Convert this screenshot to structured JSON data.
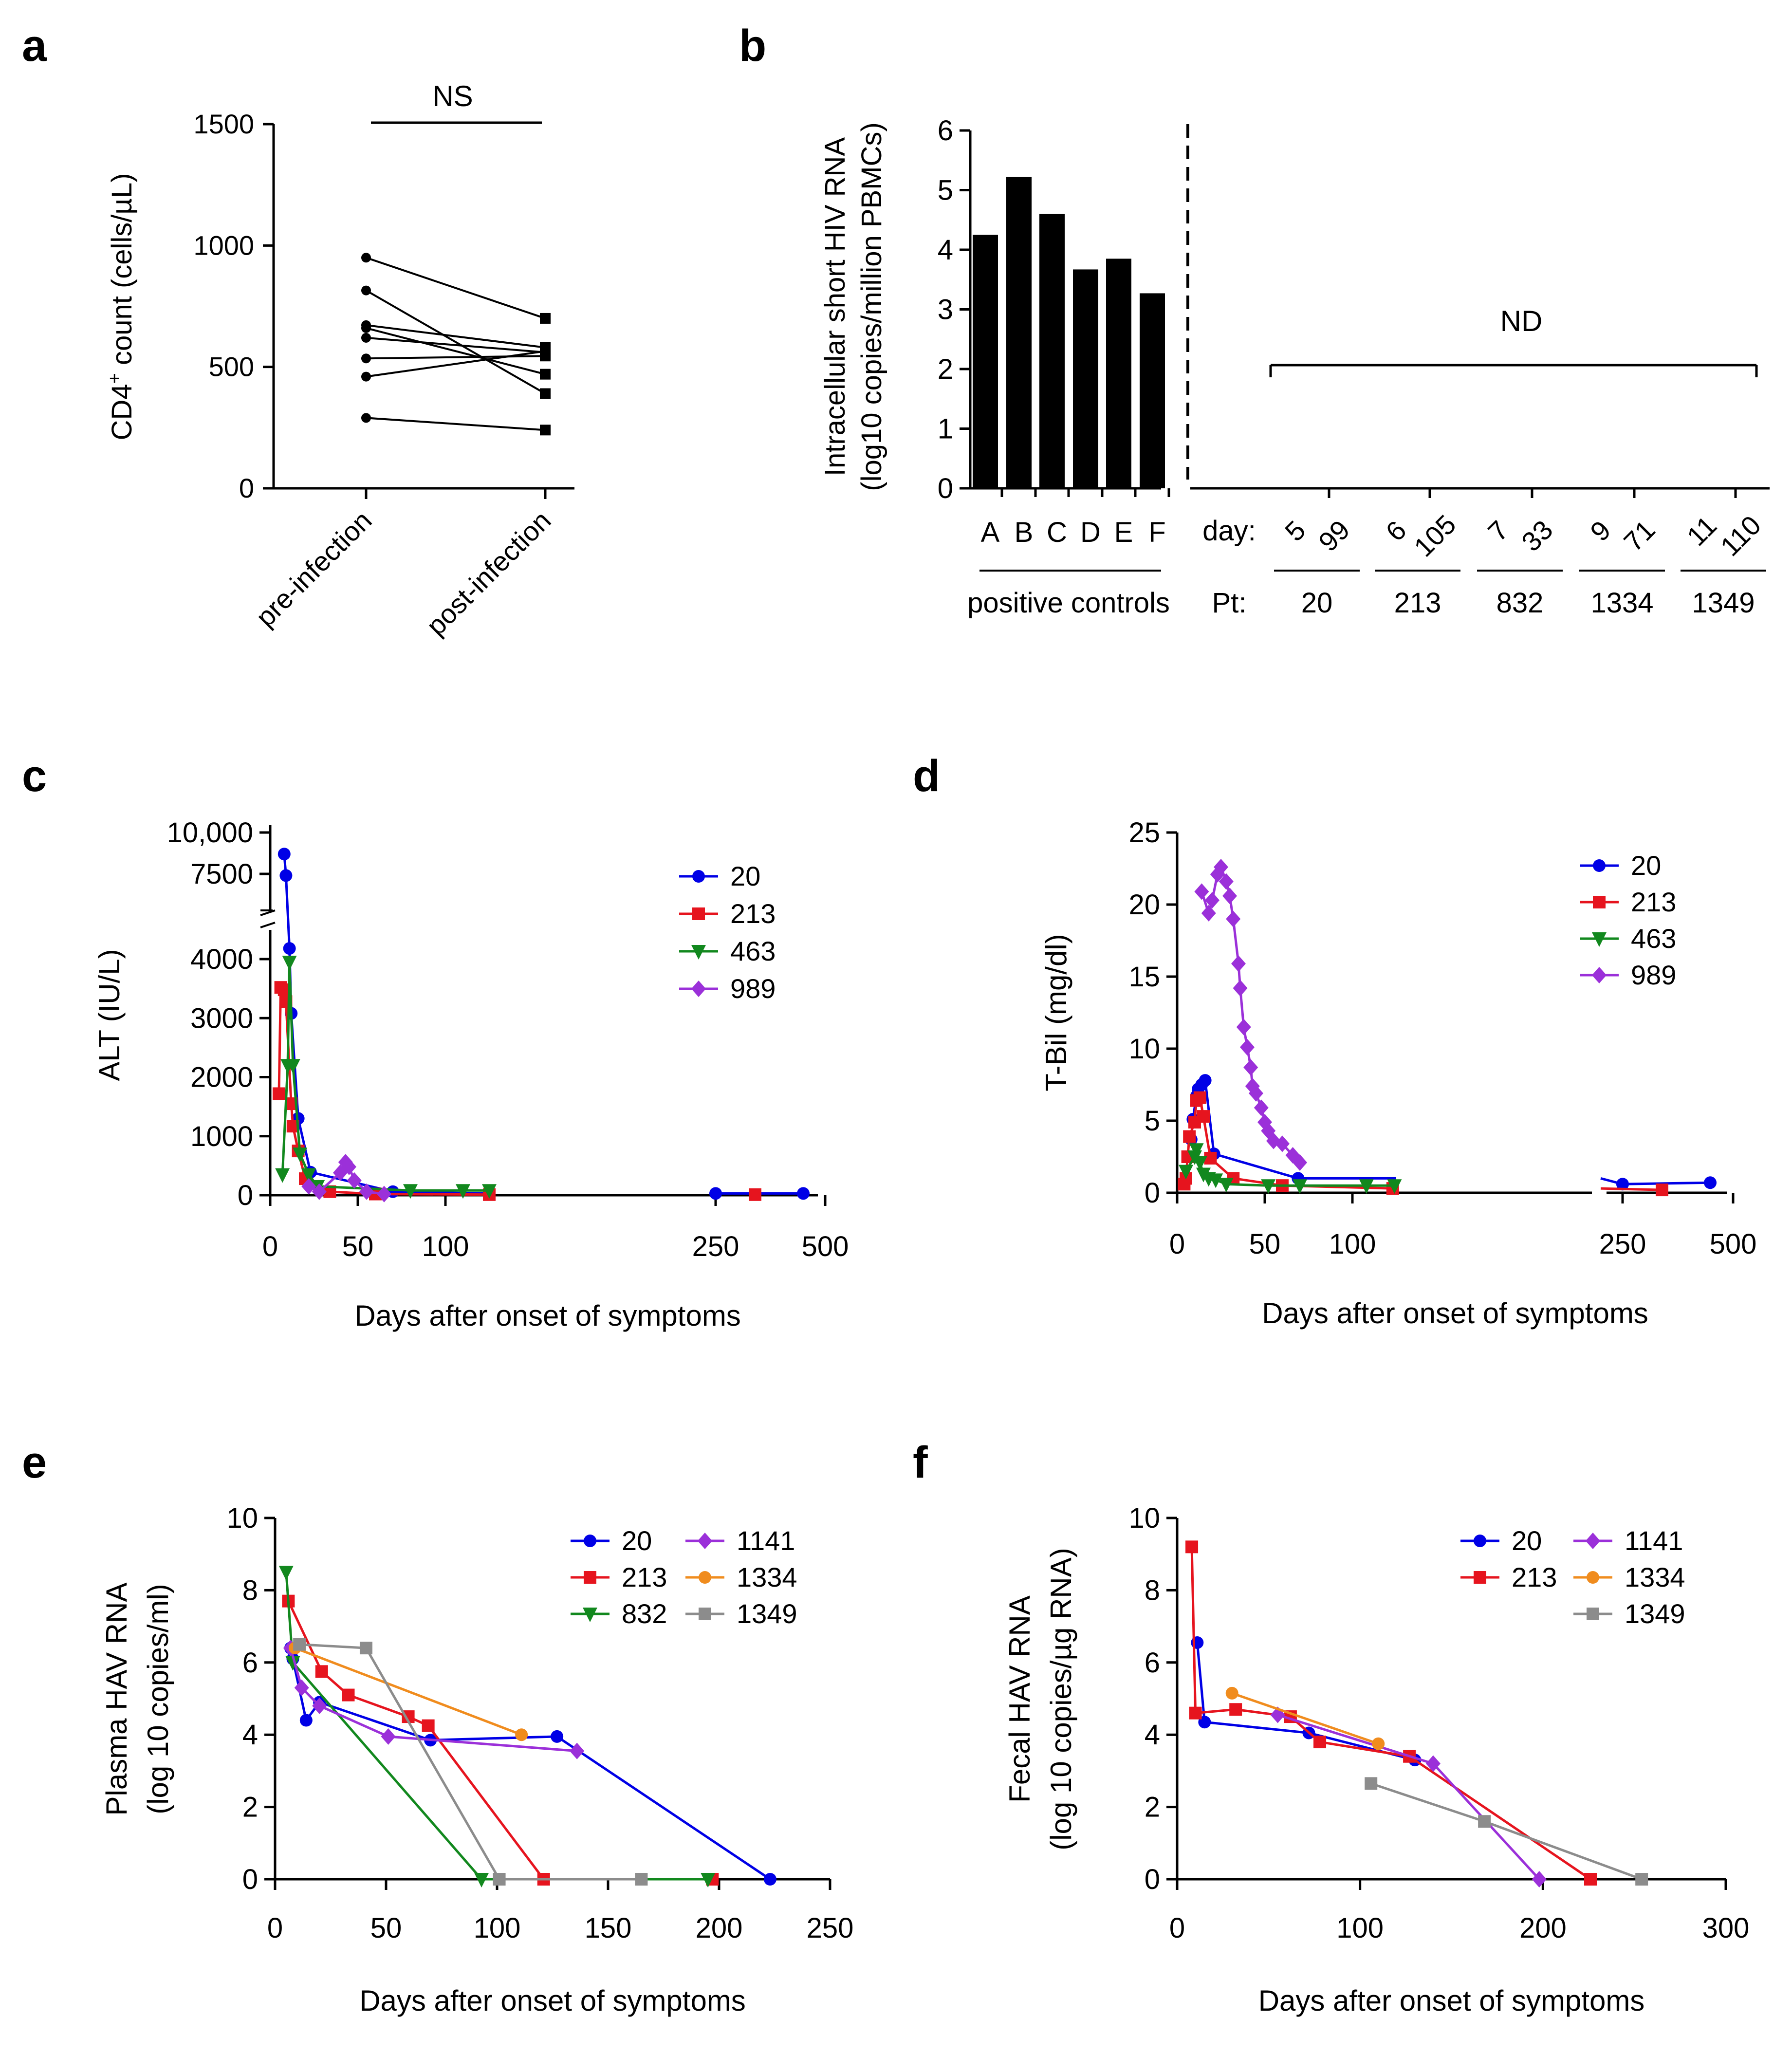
{
  "colors": {
    "s20": "#0000e6",
    "s213": "#e6141e",
    "s463": "#12881e",
    "s832": "#12881e",
    "s989": "#9b30d9",
    "s1141": "#9b30d9",
    "s1334": "#f08c1e",
    "s1349": "#8c8c8c",
    "ink": "#000000"
  },
  "panel_labels": {
    "a": "a",
    "b": "b",
    "c": "c",
    "d": "d",
    "e": "e",
    "f": "f"
  },
  "chart_data": [
    {
      "id": "a",
      "type": "line",
      "title": "",
      "significance": "NS",
      "ylabel_pre": "CD4",
      "ylabel_sup": "+",
      "ylabel_post": " count (cells/µL)",
      "ylim": [
        0,
        1500
      ],
      "yticks": [
        0,
        500,
        1000,
        1500
      ],
      "categories": [
        "pre-infection",
        "post-infection"
      ],
      "pairs": [
        [
          950,
          700
        ],
        [
          815,
          390
        ],
        [
          672,
          580
        ],
        [
          660,
          470
        ],
        [
          620,
          560
        ],
        [
          535,
          545
        ],
        [
          460,
          565
        ],
        [
          290,
          240
        ]
      ]
    },
    {
      "id": "b",
      "type": "bar",
      "ylabel_line1": "Intracellular short HIV RNA",
      "ylabel_line2": "(log10 copies/million PBMCs)",
      "ylim": [
        0,
        6
      ],
      "yticks": [
        0,
        1,
        2,
        3,
        4,
        5,
        6
      ],
      "categories": [
        "A",
        "B",
        "C",
        "D",
        "E",
        "F"
      ],
      "values": [
        4.25,
        5.22,
        4.6,
        3.67,
        3.85,
        3.27
      ],
      "group_label": "positive controls",
      "nd_label": "ND",
      "day_label": "day:",
      "pt_label": "Pt:",
      "patients": [
        {
          "pt": "20",
          "days": [
            "5",
            "99"
          ]
        },
        {
          "pt": "213",
          "days": [
            "6",
            "105"
          ]
        },
        {
          "pt": "832",
          "days": [
            "7",
            "33"
          ]
        },
        {
          "pt": "1334",
          "days": [
            "9",
            "71"
          ]
        },
        {
          "pt": "1349",
          "days": [
            "11",
            "110"
          ]
        }
      ]
    },
    {
      "id": "c",
      "type": "line",
      "ylabel": "ALT (IU/L)",
      "xlabel": "Days after onset of symptoms",
      "xticks": [
        "0",
        "50",
        "100",
        "250",
        "500"
      ],
      "ylower_ticks": [
        "0",
        "1000",
        "2000",
        "3000",
        "4000"
      ],
      "yupper_ticks": [
        "7500",
        "10,000"
      ],
      "legend": [
        "20",
        "213",
        "463",
        "989"
      ],
      "series": [
        {
          "name": "20",
          "color_key": "s20",
          "marker": "circle",
          "segments": [
            [
              [
                8,
                8700
              ],
              [
                9,
                7400
              ],
              [
                11,
                4180
              ],
              [
                12,
                3080
              ],
              [
                16,
                1300
              ],
              [
                23,
                390
              ],
              [
                70,
                60
              ],
              [
                125,
                30
              ]
            ],
            [
              [
                250,
                30
              ],
              [
                450,
                30
              ]
            ]
          ]
        },
        {
          "name": "213",
          "color_key": "s213",
          "marker": "square",
          "segments": [
            [
              [
                5,
                1720
              ],
              [
                6,
                3520
              ],
              [
                8,
                3480
              ],
              [
                9,
                3280
              ],
              [
                12,
                1550
              ],
              [
                13,
                1170
              ],
              [
                16,
                750
              ],
              [
                20,
                280
              ],
              [
                34,
                60
              ],
              [
                60,
                20
              ],
              [
                125,
                10
              ]
            ],
            [
              [
                340,
                10
              ]
            ]
          ]
        },
        {
          "name": "463",
          "color_key": "s463",
          "marker": "tri",
          "segments": [
            [
              [
                7,
                350
              ],
              [
                10,
                2200
              ],
              [
                11,
                3950
              ],
              [
                13,
                2200
              ],
              [
                17,
                700
              ],
              [
                22,
                350
              ],
              [
                27,
                150
              ],
              [
                80,
                80
              ],
              [
                110,
                80
              ],
              [
                125,
                80
              ]
            ]
          ]
        },
        {
          "name": "989",
          "color_key": "s989",
          "marker": "diamond",
          "segments": [
            [
              [
                22,
                150
              ],
              [
                28,
                60
              ],
              [
                40,
                380
              ],
              [
                43,
                560
              ],
              [
                45,
                480
              ],
              [
                48,
                250
              ],
              [
                55,
                60
              ],
              [
                65,
                20
              ]
            ]
          ]
        }
      ]
    },
    {
      "id": "d",
      "type": "line",
      "ylabel": "T-Bil (mg/dl)",
      "xlabel": "Days after onset of symptoms",
      "xticks": [
        "0",
        "50",
        "100",
        "250",
        "500"
      ],
      "yticks": [
        "0",
        "5",
        "10",
        "15",
        "20",
        "25"
      ],
      "legend": [
        "20",
        "213",
        "463",
        "989"
      ],
      "series": [
        {
          "name": "20",
          "color_key": "s20",
          "marker": "circle",
          "segments": [
            [
              [
                8,
                3.7
              ],
              [
                9,
                5.1
              ],
              [
                11,
                6.7
              ],
              [
                12,
                7.2
              ],
              [
                14,
                7.5
              ],
              [
                16,
                7.8
              ],
              [
                21,
                2.7
              ],
              [
                69,
                1.0
              ],
              [
                125,
                1.0
              ]
            ],
            [
              [
                200,
                1.0
              ],
              [
                250,
                0.6
              ],
              [
                450,
                0.7
              ]
            ]
          ]
        },
        {
          "name": "213",
          "color_key": "s213",
          "marker": "square",
          "segments": [
            [
              [
                4,
                0.6
              ],
              [
                5,
                1.0
              ],
              [
                6,
                2.5
              ],
              [
                7,
                3.9
              ],
              [
                10,
                4.9
              ],
              [
                11,
                6.4
              ],
              [
                13,
                6.6
              ],
              [
                15,
                5.3
              ],
              [
                19,
                2.4
              ],
              [
                32,
                1.0
              ],
              [
                60,
                0.5
              ],
              [
                123,
                0.3
              ]
            ],
            [
              [
                200,
                0.3
              ],
              [
                340,
                0.2
              ]
            ]
          ]
        },
        {
          "name": "463",
          "color_key": "s463",
          "marker": "tri",
          "segments": [
            [
              [
                5,
                1.5
              ],
              [
                10,
                2.5
              ],
              [
                11,
                3.0
              ],
              [
                13,
                2.1
              ],
              [
                15,
                1.3
              ],
              [
                18,
                1.0
              ],
              [
                22,
                0.9
              ],
              [
                28,
                0.6
              ],
              [
                52,
                0.5
              ],
              [
                70,
                0.5
              ],
              [
                108,
                0.5
              ],
              [
                124,
                0.5
              ]
            ]
          ]
        },
        {
          "name": "989",
          "color_key": "s989",
          "marker": "diamond",
          "segments": [
            [
              [
                14,
                20.9
              ],
              [
                18,
                19.4
              ],
              [
                20,
                20.3
              ],
              [
                23,
                22.1
              ],
              [
                25,
                22.6
              ],
              [
                28,
                21.6
              ],
              [
                30,
                20.6
              ],
              [
                32,
                19.0
              ],
              [
                35,
                15.9
              ],
              [
                36,
                14.2
              ],
              [
                38,
                11.5
              ],
              [
                40,
                10.1
              ],
              [
                42,
                8.7
              ],
              [
                43,
                7.4
              ],
              [
                45,
                6.9
              ],
              [
                48,
                5.9
              ],
              [
                50,
                4.9
              ],
              [
                52,
                4.3
              ],
              [
                55,
                3.6
              ],
              [
                60,
                3.4
              ],
              [
                66,
                2.6
              ],
              [
                70,
                2.1
              ]
            ]
          ]
        }
      ]
    },
    {
      "id": "e",
      "type": "line",
      "ylabel_line1": "Plasma HAV RNA",
      "ylabel_line2": "(log 10 copies/ml)",
      "xlabel": "Days after onset of symptoms",
      "xlim": [
        0,
        250
      ],
      "ylim": [
        0,
        10
      ],
      "xticks": [
        0,
        50,
        100,
        150,
        200,
        250
      ],
      "yticks": [
        0,
        2,
        4,
        6,
        8,
        10
      ],
      "legend": [
        "20",
        "213",
        "832",
        "1141",
        "1334",
        "1349"
      ],
      "series": [
        {
          "name": "20",
          "color_key": "s20",
          "marker": "circle",
          "points": [
            [
              7,
              6.4
            ],
            [
              8,
              6.1
            ],
            [
              14,
              4.4
            ],
            [
              20,
              4.9
            ],
            [
              70,
              3.85
            ],
            [
              127,
              3.95
            ],
            [
              223,
              0
            ]
          ]
        },
        {
          "name": "213",
          "color_key": "s213",
          "marker": "square",
          "points": [
            [
              6,
              7.7
            ],
            [
              21,
              5.75
            ],
            [
              33,
              5.1
            ],
            [
              60,
              4.5
            ],
            [
              69,
              4.25
            ],
            [
              121,
              0
            ],
            [
              197,
              0
            ]
          ]
        },
        {
          "name": "832",
          "color_key": "s832",
          "marker": "tri",
          "points": [
            [
              5,
              8.5
            ],
            [
              8,
              6.0
            ],
            [
              93,
              0
            ],
            [
              195,
              0
            ]
          ]
        },
        {
          "name": "1141",
          "color_key": "s1141",
          "marker": "diamond",
          "points": [
            [
              7,
              6.4
            ],
            [
              12,
              5.3
            ],
            [
              20,
              4.8
            ],
            [
              51,
              3.95
            ],
            [
              136,
              3.55
            ]
          ]
        },
        {
          "name": "1334",
          "color_key": "s1334",
          "marker": "circle",
          "points": [
            [
              9,
              6.4
            ],
            [
              111,
              4.0
            ]
          ]
        },
        {
          "name": "1349",
          "color_key": "s1349",
          "marker": "square",
          "points": [
            [
              11,
              6.5
            ],
            [
              41,
              6.4
            ],
            [
              101,
              0
            ],
            [
              165,
              0
            ]
          ]
        }
      ]
    },
    {
      "id": "f",
      "type": "line",
      "ylabel_line1": "Fecal HAV RNA",
      "ylabel_line2": "(log 10 copies/µg RNA)",
      "xlabel": "Days after onset of symptoms",
      "xlim": [
        0,
        300
      ],
      "ylim": [
        0,
        10
      ],
      "xticks": [
        0,
        100,
        200,
        300
      ],
      "yticks": [
        0,
        2,
        4,
        6,
        8,
        10
      ],
      "legend": [
        "20",
        "213",
        "1141",
        "1334",
        "1349"
      ],
      "series": [
        {
          "name": "20",
          "color_key": "s20",
          "marker": "circle",
          "points": [
            [
              11,
              6.55
            ],
            [
              15,
              4.35
            ],
            [
              72,
              4.05
            ],
            [
              130,
              3.3
            ]
          ]
        },
        {
          "name": "213",
          "color_key": "s213",
          "marker": "square",
          "points": [
            [
              8,
              9.2
            ],
            [
              10,
              4.6
            ],
            [
              32,
              4.7
            ],
            [
              62,
              4.5
            ],
            [
              78,
              3.8
            ],
            [
              127,
              3.4
            ],
            [
              226,
              0
            ]
          ]
        },
        {
          "name": "1141",
          "color_key": "s1141",
          "marker": "diamond",
          "points": [
            [
              55,
              4.55
            ],
            [
              140,
              3.2
            ],
            [
              198,
              0
            ]
          ]
        },
        {
          "name": "1334",
          "color_key": "s1334",
          "marker": "circle",
          "points": [
            [
              30,
              5.15
            ],
            [
              110,
              3.75
            ]
          ]
        },
        {
          "name": "1349",
          "color_key": "s1349",
          "marker": "square",
          "points": [
            [
              106,
              2.65
            ],
            [
              168,
              1.6
            ],
            [
              254,
              0
            ]
          ]
        }
      ]
    }
  ]
}
